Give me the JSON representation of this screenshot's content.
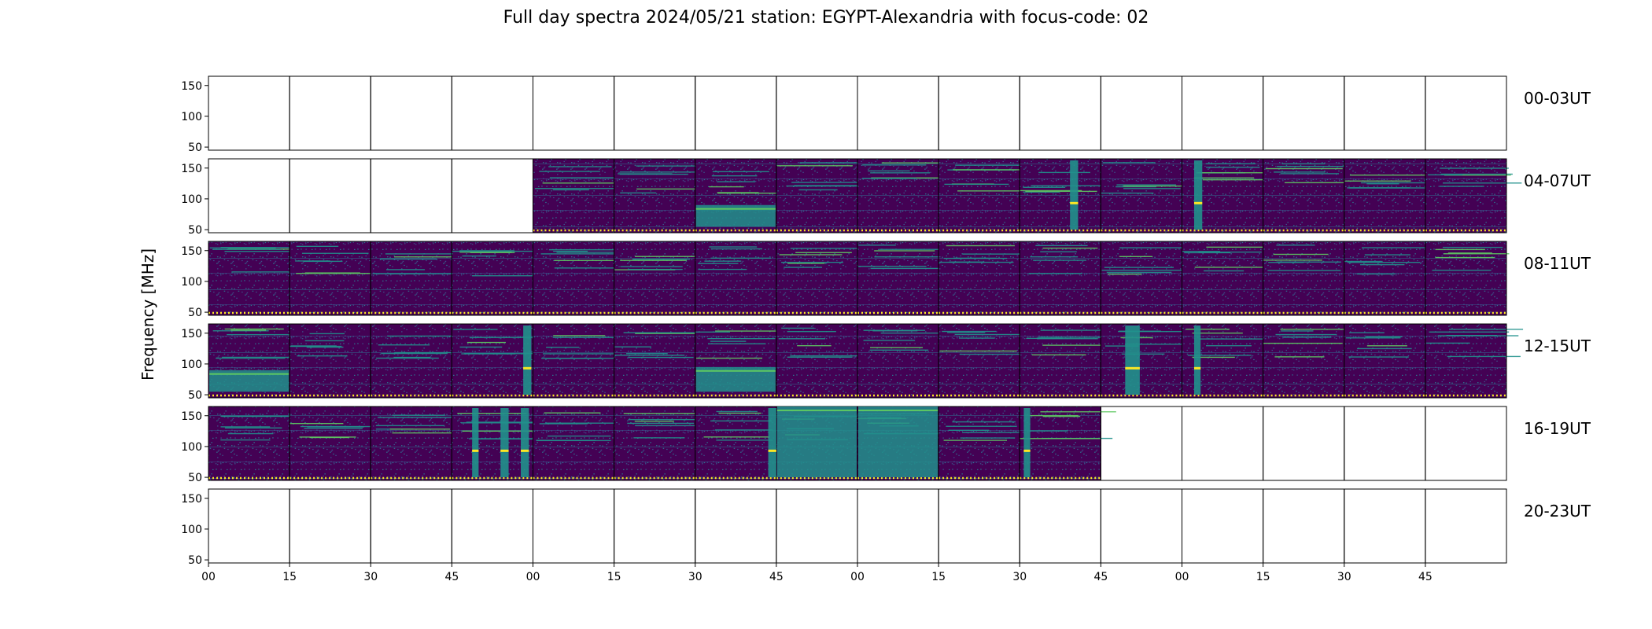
{
  "title": "Full day spectra 2024/05/21 station: EGYPT-Alexandria with focus-code: 02",
  "chart_data": {
    "type": "heatmap",
    "title": "Full day spectra 2024/05/21 station: EGYPT-Alexandria with focus-code: 02",
    "ylabel": "Frequency [MHz]",
    "xlabel": "",
    "ylim": [
      45,
      165
    ],
    "yticks": [
      50,
      100,
      150
    ],
    "xticks": [
      "00",
      "15",
      "30",
      "45",
      "00",
      "15",
      "30",
      "45",
      "00",
      "15",
      "30",
      "45",
      "00",
      "15",
      "30",
      "45"
    ],
    "colormap": "viridis",
    "colors": {
      "low": "#440154",
      "mid": "#21918c",
      "high": "#fde725",
      "frame": "#000000"
    },
    "rows": [
      {
        "label": "00-03UT",
        "data": [
          0,
          0,
          0,
          0,
          0,
          0,
          0,
          0,
          0,
          0,
          0,
          0,
          0,
          0,
          0,
          0
        ],
        "bursts": []
      },
      {
        "label": "04-07UT",
        "data": [
          0,
          0,
          0,
          0,
          1,
          1,
          1,
          1,
          1,
          1,
          1,
          1,
          1,
          1,
          1,
          1
        ],
        "bursts": [
          {
            "panel": 6,
            "kind": "band",
            "fmin": 55,
            "fmax": 90
          },
          {
            "panel": 10,
            "kind": "column",
            "pos": 0.62,
            "width": 0.1
          },
          {
            "panel": 12,
            "kind": "column",
            "pos": 0.15,
            "width": 0.1
          }
        ]
      },
      {
        "label": "08-11UT",
        "data": [
          1,
          1,
          1,
          1,
          1,
          1,
          1,
          1,
          1,
          1,
          1,
          1,
          1,
          1,
          1,
          1
        ],
        "bursts": []
      },
      {
        "label": "12-15UT",
        "data": [
          1,
          1,
          1,
          1,
          1,
          1,
          1,
          1,
          1,
          1,
          1,
          1,
          1,
          1,
          1,
          1
        ],
        "bursts": [
          {
            "panel": 0,
            "kind": "band",
            "fmin": 55,
            "fmax": 90
          },
          {
            "panel": 3,
            "kind": "column",
            "pos": 0.88,
            "width": 0.1
          },
          {
            "panel": 6,
            "kind": "band",
            "fmin": 55,
            "fmax": 95
          },
          {
            "panel": 11,
            "kind": "column",
            "pos": 0.3,
            "width": 0.18
          },
          {
            "panel": 12,
            "kind": "column",
            "pos": 0.15,
            "width": 0.08
          }
        ]
      },
      {
        "label": "16-19UT",
        "data": [
          1,
          1,
          1,
          1,
          1,
          1,
          1,
          1,
          1,
          1,
          1,
          0,
          0,
          0,
          0,
          0
        ],
        "bursts": [
          {
            "panel": 3,
            "kind": "column",
            "pos": 0.25,
            "width": 0.08
          },
          {
            "panel": 3,
            "kind": "column",
            "pos": 0.6,
            "width": 0.1
          },
          {
            "panel": 3,
            "kind": "column",
            "pos": 0.85,
            "width": 0.1
          },
          {
            "panel": 6,
            "kind": "column",
            "pos": 0.9,
            "width": 0.1
          },
          {
            "panel": 7,
            "kind": "band",
            "fmin": 50,
            "fmax": 165
          },
          {
            "panel": 8,
            "kind": "band",
            "fmin": 50,
            "fmax": 165
          },
          {
            "panel": 10,
            "kind": "column",
            "pos": 0.05,
            "width": 0.08
          }
        ]
      },
      {
        "label": "20-23UT",
        "data": [
          0,
          0,
          0,
          0,
          0,
          0,
          0,
          0,
          0,
          0,
          0,
          0,
          0,
          0,
          0,
          0
        ],
        "bursts": []
      }
    ],
    "grid": false,
    "legend": "none"
  }
}
